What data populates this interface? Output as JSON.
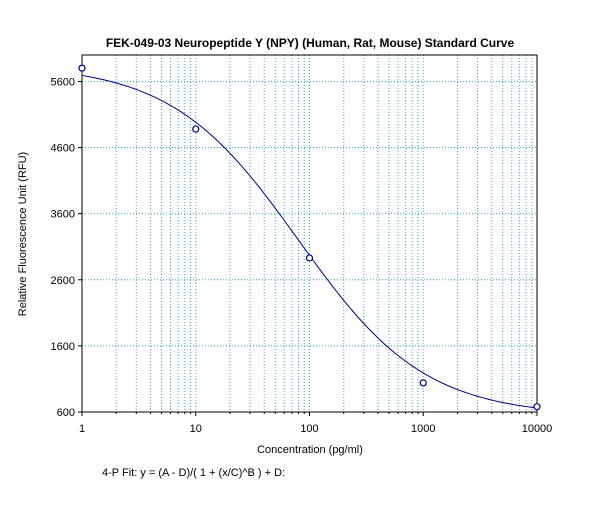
{
  "chart_data": {
    "type": "scatter",
    "title": "FEK-049-03 Neuropeptide Y (NPY) (Human, Rat, Mouse) Standard Curve",
    "xlabel": "Concentration (pg/ml)",
    "ylabel": "Relative Fluorescence Unit (RFU)",
    "x_scale": "log",
    "xlim": [
      1,
      10000
    ],
    "ylim": [
      600,
      6000
    ],
    "x_ticks": [
      "1",
      "10",
      "100",
      "1000",
      "10000"
    ],
    "y_ticks": [
      "600",
      "1600",
      "2600",
      "3600",
      "4600",
      "5600"
    ],
    "grid": true,
    "series": [
      {
        "x": [
          1,
          10,
          100,
          1000,
          10000
        ],
        "y": [
          5800,
          4880,
          2930,
          1040,
          680
        ],
        "marker": "circle",
        "color": "#000080"
      }
    ],
    "fit": {
      "type": "4-parameter logistic",
      "color": "#000080"
    },
    "footnote": "4-P Fit: y = (A - D)/( 1 + (x/C)^B ) + D:"
  }
}
